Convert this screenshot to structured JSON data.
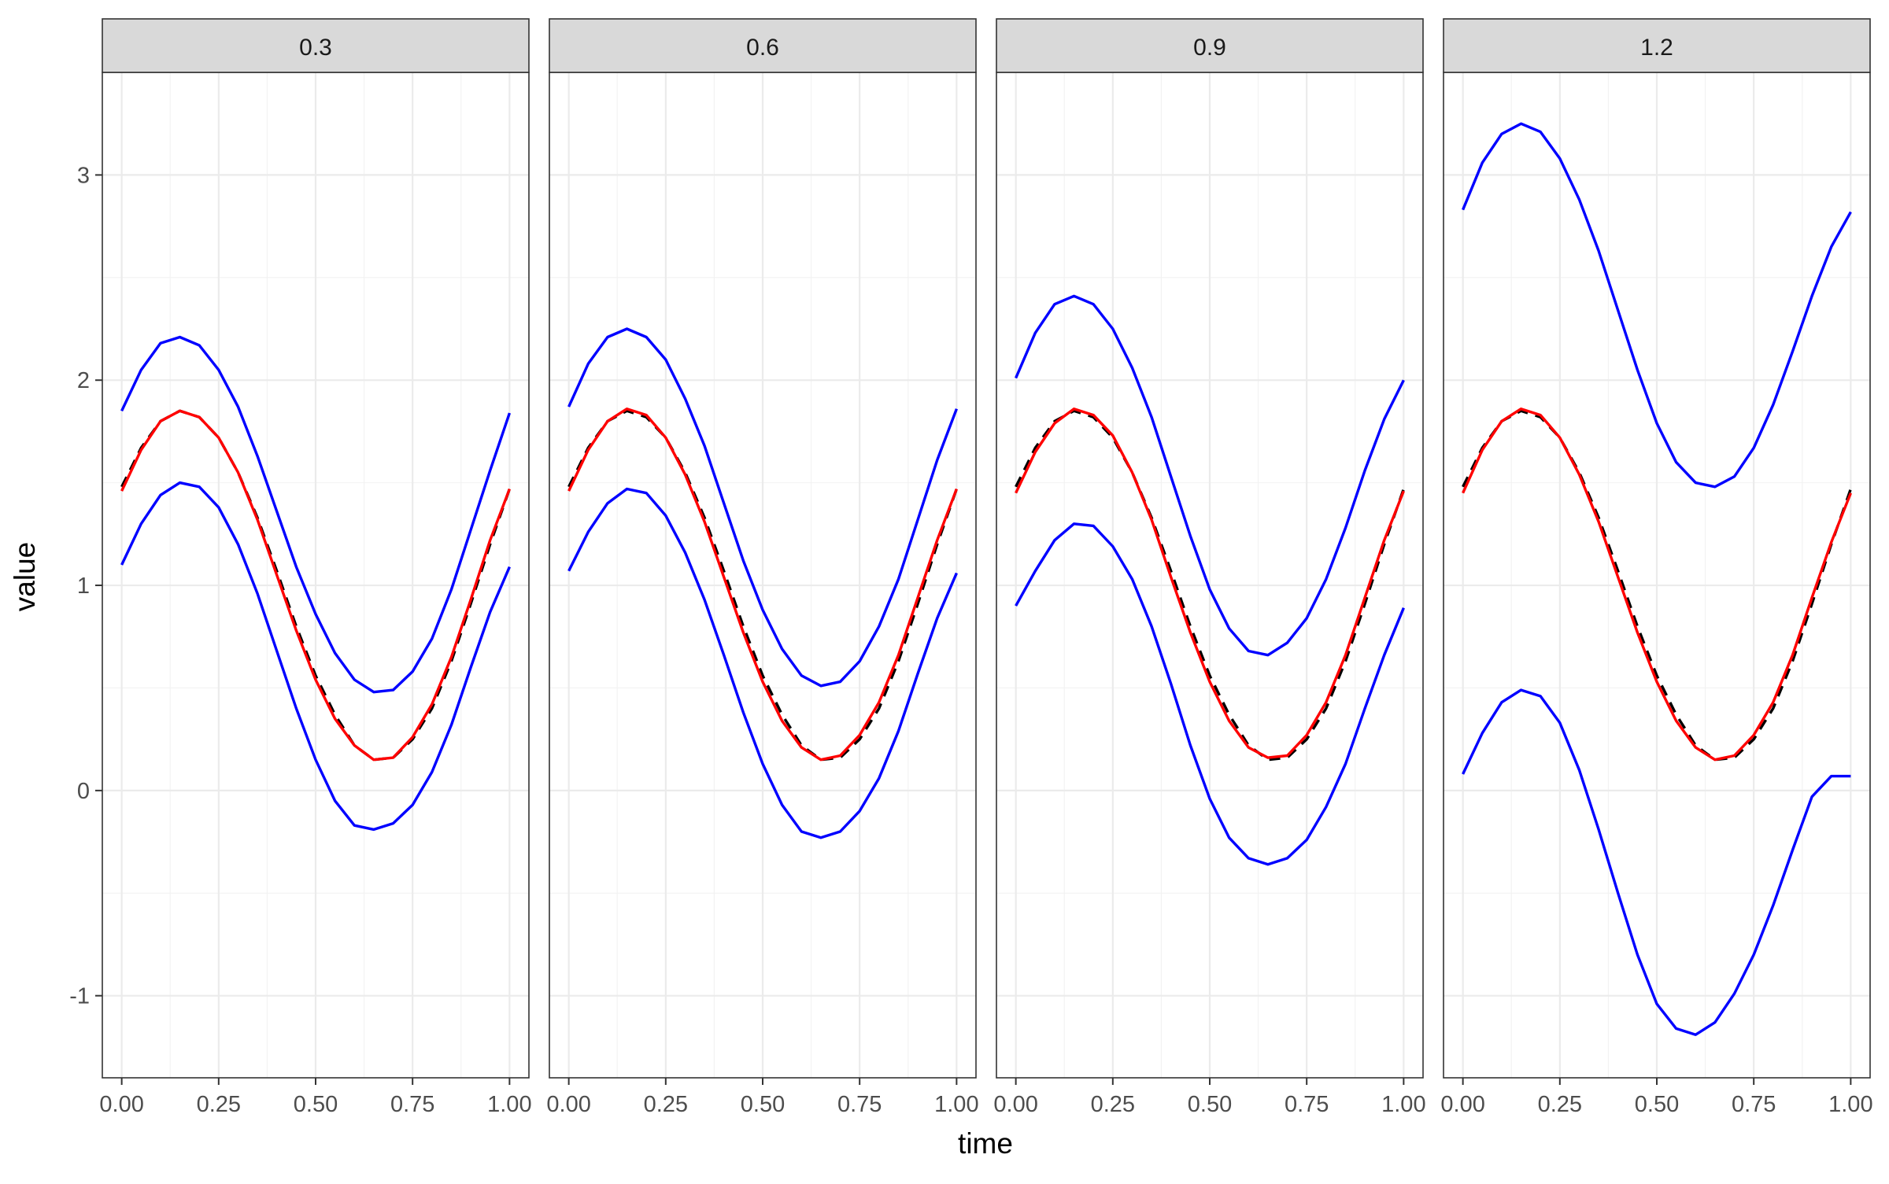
{
  "chart_data": {
    "type": "line",
    "facet_variable_values": [
      "0.3",
      "0.6",
      "0.9",
      "1.2"
    ],
    "xlabel": "time",
    "ylabel": "value",
    "xlim": [
      -0.05,
      1.05
    ],
    "ylim": [
      -1.4,
      3.5
    ],
    "x_ticks": [
      0,
      0.25,
      0.5,
      0.75,
      1
    ],
    "x_tick_labels": [
      "0.00",
      "0.25",
      "0.50",
      "0.75",
      "1.00"
    ],
    "y_ticks": [
      -1,
      0,
      1,
      2,
      3
    ],
    "y_tick_labels": [
      "-1",
      "0",
      "1",
      "2",
      "3"
    ],
    "grid": true,
    "colors": {
      "band": "#0000ff",
      "estimate": "#ff0000",
      "truth": "#000000"
    },
    "x": [
      0,
      0.05,
      0.1,
      0.15,
      0.2,
      0.25,
      0.3,
      0.35,
      0.4,
      0.45,
      0.5,
      0.55,
      0.6,
      0.65,
      0.7,
      0.75,
      0.8,
      0.85,
      0.9,
      0.95,
      1
    ],
    "panels": [
      {
        "facet": "0.3",
        "series": [
          {
            "style": "dashed",
            "color": "#000000",
            "values": [
              1.48,
              1.67,
              1.8,
              1.85,
              1.82,
              1.72,
              1.55,
              1.33,
              1.07,
              0.8,
              0.56,
              0.37,
              0.22,
              0.15,
              0.16,
              0.25,
              0.4,
              0.63,
              0.91,
              1.2,
              1.47
            ]
          },
          {
            "style": "solid",
            "color": "#ff0000",
            "values": [
              1.46,
              1.66,
              1.8,
              1.85,
              1.82,
              1.72,
              1.55,
              1.32,
              1.05,
              0.78,
              0.54,
              0.35,
              0.22,
              0.15,
              0.16,
              0.26,
              0.42,
              0.65,
              0.93,
              1.22,
              1.47
            ]
          },
          {
            "style": "solid",
            "color": "#0000ff",
            "values": [
              1.85,
              2.05,
              2.18,
              2.21,
              2.17,
              2.05,
              1.87,
              1.63,
              1.36,
              1.09,
              0.86,
              0.67,
              0.54,
              0.48,
              0.49,
              0.58,
              0.74,
              0.98,
              1.27,
              1.56,
              1.84
            ]
          },
          {
            "style": "solid",
            "color": "#0000ff",
            "values": [
              1.1,
              1.3,
              1.44,
              1.5,
              1.48,
              1.38,
              1.2,
              0.96,
              0.68,
              0.4,
              0.15,
              -0.05,
              -0.17,
              -0.19,
              -0.16,
              -0.07,
              0.09,
              0.32,
              0.6,
              0.87,
              1.09
            ]
          }
        ]
      },
      {
        "facet": "0.6",
        "series": [
          {
            "style": "dashed",
            "color": "#000000",
            "values": [
              1.48,
              1.67,
              1.8,
              1.85,
              1.82,
              1.72,
              1.55,
              1.33,
              1.07,
              0.8,
              0.56,
              0.37,
              0.22,
              0.15,
              0.16,
              0.25,
              0.4,
              0.63,
              0.91,
              1.2,
              1.47
            ]
          },
          {
            "style": "solid",
            "color": "#ff0000",
            "values": [
              1.46,
              1.66,
              1.8,
              1.86,
              1.83,
              1.72,
              1.54,
              1.31,
              1.04,
              0.77,
              0.53,
              0.34,
              0.21,
              0.15,
              0.17,
              0.27,
              0.43,
              0.66,
              0.94,
              1.22,
              1.47
            ]
          },
          {
            "style": "solid",
            "color": "#0000ff",
            "values": [
              1.87,
              2.08,
              2.21,
              2.25,
              2.21,
              2.1,
              1.91,
              1.68,
              1.4,
              1.12,
              0.88,
              0.69,
              0.56,
              0.51,
              0.53,
              0.63,
              0.8,
              1.03,
              1.32,
              1.61,
              1.86
            ]
          },
          {
            "style": "solid",
            "color": "#0000ff",
            "values": [
              1.07,
              1.26,
              1.4,
              1.47,
              1.45,
              1.34,
              1.16,
              0.93,
              0.66,
              0.38,
              0.13,
              -0.07,
              -0.2,
              -0.23,
              -0.2,
              -0.1,
              0.06,
              0.29,
              0.57,
              0.84,
              1.06
            ]
          }
        ]
      },
      {
        "facet": "0.9",
        "series": [
          {
            "style": "dashed",
            "color": "#000000",
            "values": [
              1.48,
              1.67,
              1.8,
              1.85,
              1.82,
              1.72,
              1.55,
              1.33,
              1.07,
              0.8,
              0.56,
              0.37,
              0.22,
              0.15,
              0.16,
              0.25,
              0.4,
              0.63,
              0.91,
              1.2,
              1.47
            ]
          },
          {
            "style": "solid",
            "color": "#ff0000",
            "values": [
              1.45,
              1.65,
              1.79,
              1.86,
              1.83,
              1.73,
              1.55,
              1.32,
              1.04,
              0.77,
              0.53,
              0.34,
              0.21,
              0.16,
              0.17,
              0.27,
              0.43,
              0.66,
              0.94,
              1.22,
              1.46
            ]
          },
          {
            "style": "solid",
            "color": "#0000ff",
            "values": [
              2.01,
              2.23,
              2.37,
              2.41,
              2.37,
              2.25,
              2.06,
              1.82,
              1.53,
              1.24,
              0.98,
              0.79,
              0.68,
              0.66,
              0.72,
              0.84,
              1.03,
              1.28,
              1.56,
              1.81,
              2.0
            ]
          },
          {
            "style": "solid",
            "color": "#0000ff",
            "values": [
              0.9,
              1.07,
              1.22,
              1.3,
              1.29,
              1.19,
              1.03,
              0.8,
              0.52,
              0.22,
              -0.04,
              -0.23,
              -0.33,
              -0.36,
              -0.33,
              -0.24,
              -0.08,
              0.13,
              0.4,
              0.66,
              0.89
            ]
          }
        ]
      },
      {
        "facet": "1.2",
        "series": [
          {
            "style": "dashed",
            "color": "#000000",
            "values": [
              1.48,
              1.67,
              1.8,
              1.85,
              1.82,
              1.72,
              1.55,
              1.33,
              1.07,
              0.8,
              0.56,
              0.37,
              0.22,
              0.15,
              0.16,
              0.25,
              0.4,
              0.63,
              0.91,
              1.2,
              1.47
            ]
          },
          {
            "style": "solid",
            "color": "#ff0000",
            "values": [
              1.45,
              1.66,
              1.8,
              1.86,
              1.83,
              1.72,
              1.54,
              1.31,
              1.04,
              0.77,
              0.53,
              0.34,
              0.21,
              0.15,
              0.17,
              0.27,
              0.43,
              0.66,
              0.94,
              1.21,
              1.45
            ]
          },
          {
            "style": "solid",
            "color": "#0000ff",
            "values": [
              2.83,
              3.06,
              3.2,
              3.25,
              3.21,
              3.08,
              2.88,
              2.63,
              2.34,
              2.05,
              1.79,
              1.6,
              1.5,
              1.48,
              1.53,
              1.67,
              1.88,
              2.14,
              2.41,
              2.65,
              2.82
            ]
          },
          {
            "style": "solid",
            "color": "#0000ff",
            "values": [
              0.08,
              0.28,
              0.43,
              0.49,
              0.46,
              0.33,
              0.1,
              -0.19,
              -0.5,
              -0.8,
              -1.04,
              -1.16,
              -1.19,
              -1.13,
              -0.99,
              -0.8,
              -0.56,
              -0.29,
              -0.03,
              0.07,
              0.07
            ]
          }
        ]
      }
    ]
  }
}
